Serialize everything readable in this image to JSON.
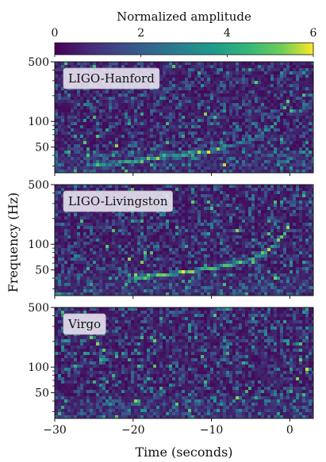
{
  "chart_data": {
    "type": "heatmap",
    "colorbar": {
      "label": "Normalized amplitude",
      "range": [
        0,
        6
      ],
      "ticks": [
        "0",
        "2",
        "4",
        "6"
      ],
      "colormap": [
        "#440154",
        "#3b528b",
        "#21908d",
        "#5dc962",
        "#fde725"
      ]
    },
    "xlabel": "Time (seconds)",
    "ylabel": "Frequency (Hz)",
    "xlim": [
      -30,
      3
    ],
    "x_ticks": [
      "-30",
      "-20",
      "-10",
      "0"
    ],
    "y_scale": "log",
    "ylim": [
      25,
      500
    ],
    "y_ticks": [
      "50",
      "100",
      "500"
    ],
    "panels": [
      {
        "name": "LIGO-Hanford",
        "chirp": [
          [
            -25,
            30
          ],
          [
            -10,
            45
          ],
          [
            -5,
            60
          ],
          [
            -2,
            90
          ],
          [
            -0.5,
            150
          ],
          [
            0,
            200
          ]
        ],
        "chirp_strength": 2.8
      },
      {
        "name": "LIGO-Livingston",
        "chirp": [
          [
            -20,
            40
          ],
          [
            -15,
            45
          ],
          [
            -10,
            52
          ],
          [
            -5,
            65
          ],
          [
            -2,
            95
          ],
          [
            -0.5,
            140
          ],
          [
            0,
            200
          ]
        ],
        "chirp_strength": 4.5
      },
      {
        "name": "Virgo",
        "chirp": [],
        "chirp_strength": 0
      }
    ]
  }
}
